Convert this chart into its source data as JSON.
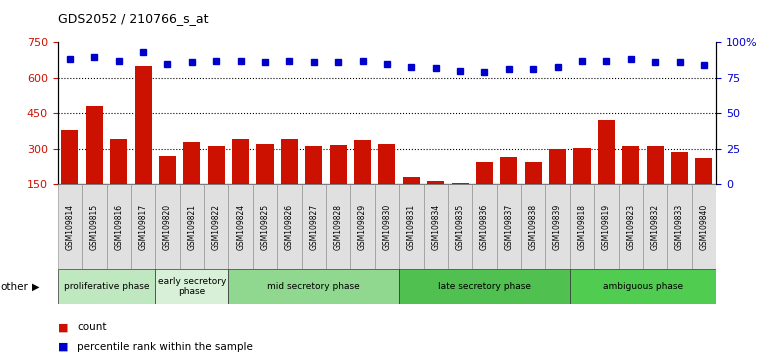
{
  "title": "GDS2052 / 210766_s_at",
  "samples": [
    "GSM109814",
    "GSM109815",
    "GSM109816",
    "GSM109817",
    "GSM109820",
    "GSM109821",
    "GSM109822",
    "GSM109824",
    "GSM109825",
    "GSM109826",
    "GSM109827",
    "GSM109828",
    "GSM109829",
    "GSM109830",
    "GSM109831",
    "GSM109834",
    "GSM109835",
    "GSM109836",
    "GSM109837",
    "GSM109838",
    "GSM109839",
    "GSM109818",
    "GSM109819",
    "GSM109823",
    "GSM109832",
    "GSM109833",
    "GSM109840"
  ],
  "counts": [
    380,
    480,
    340,
    650,
    270,
    330,
    310,
    340,
    320,
    340,
    310,
    315,
    335,
    320,
    180,
    165,
    155,
    245,
    265,
    245,
    300,
    305,
    420,
    310,
    310,
    285,
    260
  ],
  "percentile_ranks": [
    88,
    90,
    87,
    93,
    85,
    86,
    87,
    87,
    86,
    87,
    86,
    86,
    87,
    85,
    83,
    82,
    80,
    79,
    81,
    81,
    83,
    87,
    87,
    88,
    86,
    86,
    84
  ],
  "phases": [
    {
      "name": "proliferative phase",
      "start": 0,
      "end": 4,
      "color": "#c8e8c8"
    },
    {
      "name": "early secretory\nphase",
      "start": 4,
      "end": 7,
      "color": "#e0f0e0"
    },
    {
      "name": "mid secretory phase",
      "start": 7,
      "end": 14,
      "color": "#90d890"
    },
    {
      "name": "late secretory phase",
      "start": 14,
      "end": 21,
      "color": "#58c858"
    },
    {
      "name": "ambiguous phase",
      "start": 21,
      "end": 27,
      "color": "#58cc58"
    }
  ],
  "ylim_left": [
    150,
    750
  ],
  "ylim_right": [
    0,
    100
  ],
  "yticks_left": [
    150,
    300,
    450,
    600,
    750
  ],
  "yticks_right": [
    0,
    25,
    50,
    75,
    100
  ],
  "bar_color": "#cc1100",
  "dot_color": "#0000cc",
  "background_color": "#ffffff",
  "other_label": "other"
}
